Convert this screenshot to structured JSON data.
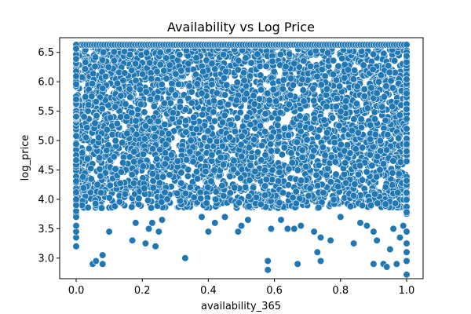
{
  "chart_data": {
    "type": "scatter",
    "title": "Availability vs Log Price",
    "xlabel": "availability_365",
    "ylabel": "log_price",
    "xlim": [
      -0.05,
      1.05
    ],
    "ylim": [
      2.65,
      6.75
    ],
    "xticks": [
      0.0,
      0.2,
      0.4,
      0.6,
      0.8,
      1.0
    ],
    "xtick_labels": [
      "0.0",
      "0.2",
      "0.4",
      "0.6",
      "0.8",
      "1.0"
    ],
    "yticks": [
      3.0,
      3.5,
      4.0,
      4.5,
      5.0,
      5.5,
      6.0,
      6.5
    ],
    "ytick_labels": [
      "3.0",
      "3.5",
      "4.0",
      "4.5",
      "5.0",
      "5.5",
      "6.0",
      "6.5"
    ],
    "grid": false,
    "marker_color": "#1f77b4",
    "marker_edge_color": "#ffffff",
    "y_cap": 6.63,
    "dense_floor": 3.85,
    "series": [
      {
        "name": "",
        "x": [
          0.0,
          0.0,
          0.0,
          0.0,
          0.0,
          0.0,
          0.0,
          0.0,
          0.05,
          0.06,
          0.08,
          0.08,
          0.1,
          0.17,
          0.18,
          0.21,
          0.22,
          0.23,
          0.24,
          0.25,
          0.26,
          0.33,
          0.38,
          0.4,
          0.42,
          0.45,
          0.49,
          0.5,
          0.52,
          0.58,
          0.58,
          0.59,
          0.62,
          0.64,
          0.66,
          0.67,
          0.68,
          0.72,
          0.73,
          0.74,
          0.74,
          0.77,
          0.8,
          0.84,
          0.86,
          0.88,
          0.9,
          0.9,
          0.91,
          0.93,
          0.94,
          0.95,
          0.96,
          0.97,
          0.98,
          0.99,
          1.0,
          1.0,
          1.0,
          1.0,
          1.0
        ],
        "y": [
          3.2,
          3.35,
          3.45,
          3.55,
          3.7,
          3.8,
          3.9,
          4.0,
          2.9,
          2.95,
          3.05,
          2.9,
          3.45,
          3.3,
          3.6,
          3.25,
          3.5,
          3.6,
          3.2,
          3.45,
          3.65,
          3.0,
          3.7,
          3.45,
          3.6,
          3.7,
          3.45,
          3.55,
          3.65,
          2.95,
          2.8,
          3.5,
          3.65,
          3.5,
          3.5,
          2.9,
          3.55,
          3.45,
          3.1,
          2.95,
          3.35,
          3.3,
          3.7,
          3.25,
          3.6,
          3.55,
          3.45,
          2.9,
          3.3,
          2.9,
          2.85,
          3.15,
          3.5,
          2.9,
          3.35,
          3.55,
          2.72,
          2.95,
          3.1,
          3.25,
          3.45
        ]
      }
    ]
  }
}
